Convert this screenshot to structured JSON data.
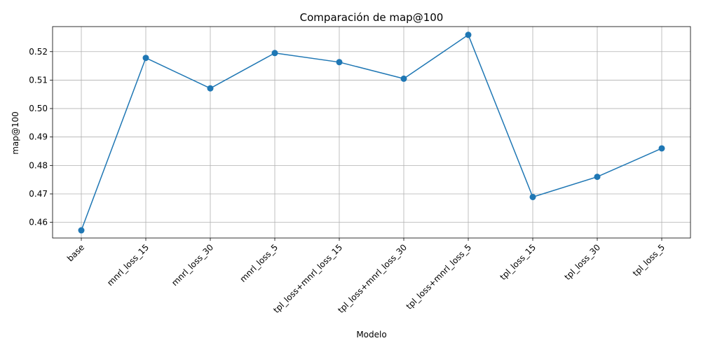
{
  "chart_data": {
    "type": "line",
    "title": "Comparación de map@100",
    "xlabel": "Modelo",
    "ylabel": "map@100",
    "categories": [
      "base",
      "mnrl_loss_15",
      "mnrl_loss_30",
      "mnrl_loss_5",
      "tpl_loss+mnrl_loss_15",
      "tpl_loss+mnrl_loss_30",
      "tpl_loss+mnrl_loss_5",
      "tpl_loss_15",
      "tpl_loss_30",
      "tpl_loss_5"
    ],
    "values": [
      0.4572,
      0.5178,
      0.5071,
      0.5195,
      0.5163,
      0.5105,
      0.5259,
      0.4689,
      0.476,
      0.486
    ],
    "ylim": [
      0.4545,
      0.5288
    ],
    "yticks": [
      "0.46",
      "0.47",
      "0.48",
      "0.49",
      "0.50",
      "0.51",
      "0.52"
    ],
    "ytick_values": [
      0.46,
      0.47,
      0.48,
      0.49,
      0.5,
      0.51,
      0.52
    ],
    "grid": true,
    "marker": "circle",
    "line_color": "#1f77b4"
  }
}
